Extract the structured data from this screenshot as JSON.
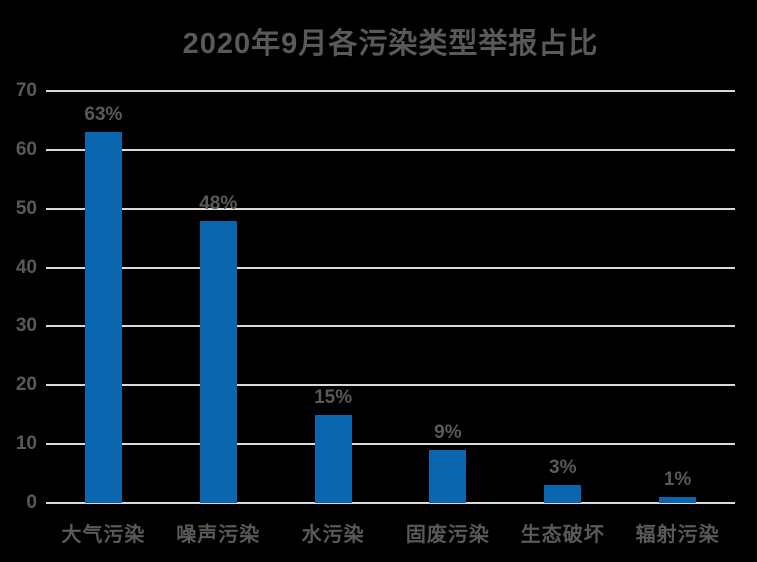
{
  "chart_data": {
    "type": "bar",
    "title": "2020年9月各污染类型举报占比",
    "categories": [
      "大气污染",
      "噪声污染",
      "水污染",
      "固废污染",
      "生态破坏",
      "辐射污染"
    ],
    "values": [
      63,
      48,
      15,
      9,
      3,
      1
    ],
    "data_labels": [
      "63%",
      "48%",
      "15%",
      "9%",
      "3%",
      "1%"
    ],
    "xlabel": "",
    "ylabel": "",
    "ylim": [
      0,
      70
    ],
    "yticks": [
      0,
      10,
      20,
      30,
      40,
      50,
      60,
      70
    ],
    "grid": true,
    "legend_position": "none",
    "colors": {
      "background": "#000000",
      "bar": "#0a66ae",
      "text": "#595959",
      "gridline": "#d9d9d9"
    }
  }
}
